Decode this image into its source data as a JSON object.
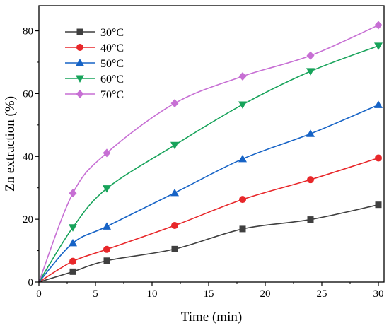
{
  "chart_data": {
    "type": "line",
    "xlabel": "Time (min)",
    "ylabel": "Zn extraction (%)",
    "xlim": [
      0,
      30.5
    ],
    "ylim": [
      0,
      88
    ],
    "xticks": [
      0,
      5,
      10,
      15,
      20,
      25,
      30
    ],
    "yticks": [
      0,
      20,
      40,
      60,
      80
    ],
    "grid": false,
    "legend": "top-left",
    "x": [
      0,
      3,
      6,
      12,
      18,
      24,
      30
    ],
    "series": [
      {
        "name": "30°C",
        "color": "#3f3f3f",
        "marker": "square",
        "values": [
          0,
          3.3,
          6.8,
          10.5,
          16.9,
          19.9,
          24.6
        ]
      },
      {
        "name": "40°C",
        "color": "#e8272a",
        "marker": "circle",
        "values": [
          0,
          6.6,
          10.4,
          18.0,
          26.3,
          32.6,
          39.5
        ]
      },
      {
        "name": "50°C",
        "color": "#1663c6",
        "marker": "triangle-up",
        "values": [
          0,
          12.4,
          17.7,
          28.4,
          39.2,
          47.2,
          56.4
        ]
      },
      {
        "name": "60°C",
        "color": "#17a35a",
        "marker": "triangle-down",
        "values": [
          0,
          17.4,
          29.8,
          43.6,
          56.5,
          67.1,
          75.2
        ]
      },
      {
        "name": "70°C",
        "color": "#c76fd4",
        "marker": "diamond",
        "values": [
          0,
          28.3,
          41.1,
          56.9,
          65.5,
          72.1,
          81.8
        ]
      }
    ]
  }
}
